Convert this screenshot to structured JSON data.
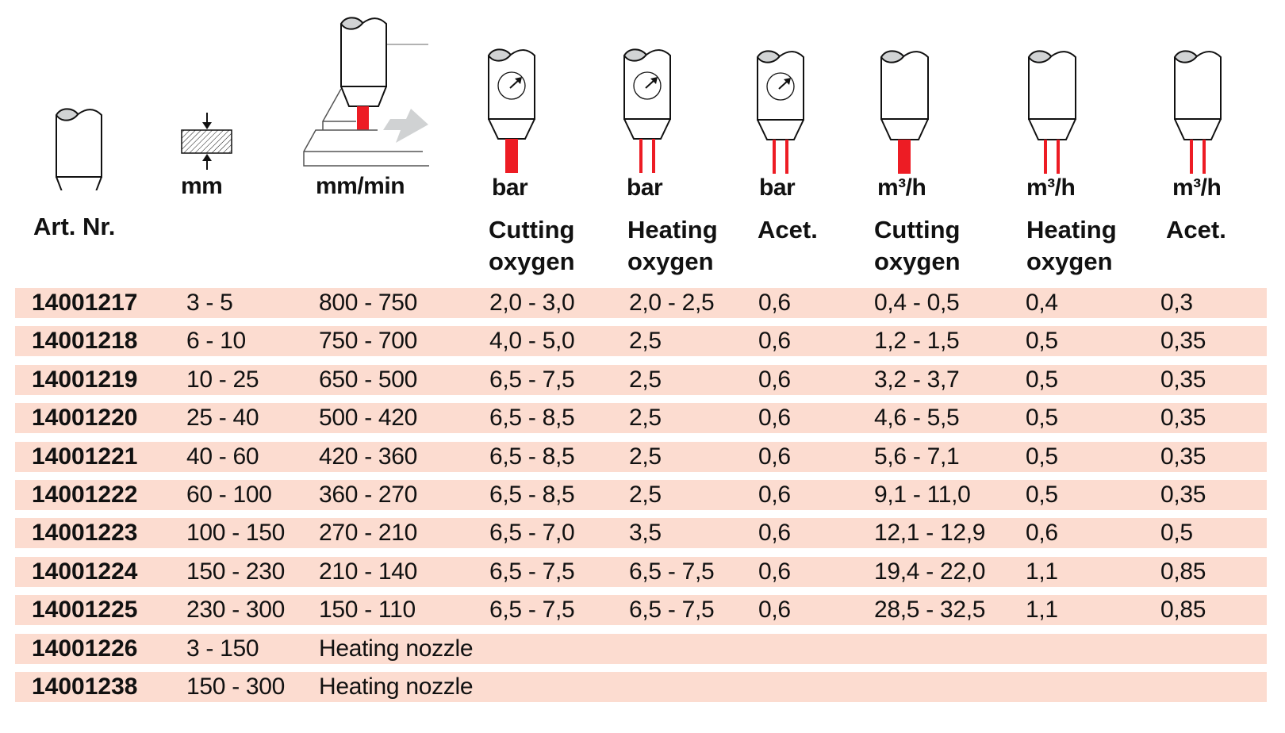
{
  "colors": {
    "row_background": "#fcdcd0",
    "flame": "#ed1c24",
    "arrow": "#d0d2d3",
    "lens": "#d1d3d4"
  },
  "header": {
    "art_nr": "Art. Nr.",
    "thickness_unit": "mm",
    "speed_unit": "mm/min",
    "columns": [
      {
        "unit": "bar",
        "line1": "Cutting",
        "line2": "oxygen",
        "icon": "nozzle-gauge-single-flame"
      },
      {
        "unit": "bar",
        "line1": "Heating",
        "line2": "oxygen",
        "icon": "nozzle-gauge-double-flame"
      },
      {
        "unit": "bar",
        "line1": "Acet.",
        "line2": "",
        "icon": "nozzle-gauge-double-flame"
      },
      {
        "unit": "m³/h",
        "line1": "Cutting",
        "line2": "oxygen",
        "icon": "nozzle-single-flame"
      },
      {
        "unit": "m³/h",
        "line1": "Heating",
        "line2": "oxygen",
        "icon": "nozzle-double-flame"
      },
      {
        "unit": "m³/h",
        "line1": "Acet.",
        "line2": "",
        "icon": "nozzle-double-flame"
      }
    ]
  },
  "rows": [
    [
      "14001217",
      "3 - 5",
      "800 - 750",
      "2,0 - 3,0",
      "2,0 - 2,5",
      "0,6",
      "0,4 - 0,5",
      "0,4",
      "0,3"
    ],
    [
      "14001218",
      "6 - 10",
      "750 - 700",
      "4,0 - 5,0",
      "2,5",
      "0,6",
      "1,2 - 1,5",
      "0,5",
      "0,35"
    ],
    [
      "14001219",
      "10 - 25",
      "650 - 500",
      "6,5 - 7,5",
      "2,5",
      "0,6",
      "3,2 - 3,7",
      "0,5",
      "0,35"
    ],
    [
      "14001220",
      "25 - 40",
      "500 - 420",
      "6,5 - 8,5",
      "2,5",
      "0,6",
      "4,6 - 5,5",
      "0,5",
      "0,35"
    ],
    [
      "14001221",
      "40 - 60",
      "420 - 360",
      "6,5 - 8,5",
      "2,5",
      "0,6",
      "5,6 - 7,1",
      "0,5",
      "0,35"
    ],
    [
      "14001222",
      "60 - 100",
      "360 - 270",
      "6,5 - 8,5",
      "2,5",
      "0,6",
      "9,1 - 11,0",
      "0,5",
      "0,35"
    ],
    [
      "14001223",
      "100 - 150",
      "270 - 210",
      "6,5 - 7,0",
      "3,5",
      "0,6",
      "12,1 - 12,9",
      "0,6",
      "0,5"
    ],
    [
      "14001224",
      "150 - 230",
      "210 - 140",
      "6,5 - 7,5",
      "6,5 - 7,5",
      "0,6",
      "19,4 - 22,0",
      "1,1",
      "0,85"
    ],
    [
      "14001225",
      "230 - 300",
      "150 - 110",
      "6,5 - 7,5",
      "6,5 - 7,5",
      "0,6",
      "28,5 - 32,5",
      "1,1",
      "0,85"
    ],
    [
      "14001226",
      "3 - 150",
      "Heating nozzle"
    ],
    [
      "14001238",
      "150 - 300",
      "Heating nozzle"
    ]
  ]
}
